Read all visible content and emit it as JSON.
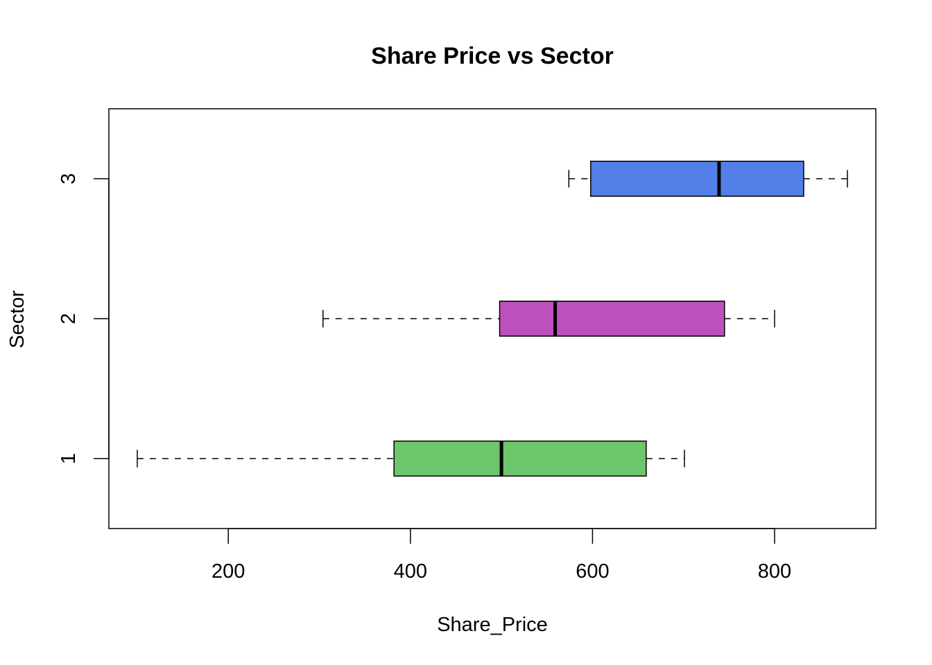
{
  "chart_data": {
    "type": "boxplot",
    "orientation": "horizontal",
    "title": "Share Price vs Sector",
    "xlabel": "Share_Price",
    "ylabel": "Sector",
    "xlim": [
      68.8,
      911.2
    ],
    "ylim": [
      0.5,
      3.5
    ],
    "x_ticks": [
      200,
      400,
      600,
      800
    ],
    "x_tick_labels": [
      "200",
      "400",
      "600",
      "800"
    ],
    "categories": [
      "1",
      "2",
      "3"
    ],
    "grid": false,
    "boxes": [
      {
        "category": "1",
        "min": 100,
        "q1": 382,
        "median": 500,
        "q3": 659,
        "max": 701,
        "color": "#6DC66B"
      },
      {
        "category": "2",
        "min": 304,
        "q1": 498,
        "median": 559,
        "q3": 745,
        "max": 800,
        "color": "#BE50BE"
      },
      {
        "category": "3",
        "min": 574,
        "q1": 598,
        "median": 739,
        "q3": 832,
        "max": 880,
        "color": "#5380E8"
      }
    ]
  }
}
